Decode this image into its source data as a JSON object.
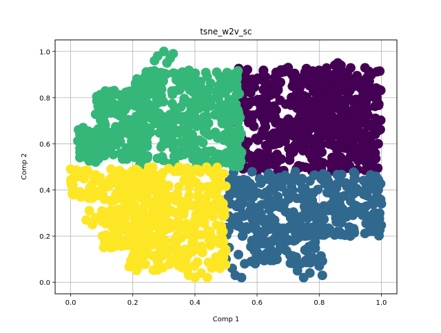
{
  "chart_data": {
    "type": "scatter",
    "title": "tsne_w2v_sc",
    "xlabel": "Comp  1",
    "ylabel": "Comp  2",
    "xlim": [
      -0.05,
      1.05
    ],
    "ylim": [
      -0.05,
      1.05
    ],
    "xticks": [
      0.0,
      0.2,
      0.4,
      0.6,
      0.8,
      1.0
    ],
    "yticks": [
      0.0,
      0.2,
      0.4,
      0.6,
      0.8,
      1.0
    ],
    "xtick_labels": [
      "0.0",
      "0.2",
      "0.4",
      "0.6",
      "0.8",
      "1.0"
    ],
    "ytick_labels": [
      "0.0",
      "0.2",
      "0.4",
      "0.6",
      "0.8",
      "1.0"
    ],
    "grid": true,
    "series": [
      {
        "color": "#440154",
        "regions": [
          {
            "x": [
              0.52,
              1.0
            ],
            "y": [
              0.48,
              0.93
            ]
          },
          {
            "x": [
              0.72,
              0.96
            ],
            "y": [
              0.62,
              0.9
            ]
          }
        ],
        "points": [
          [
            0.86,
            0.95
          ],
          [
            0.87,
            0.94
          ],
          [
            0.85,
            0.94
          ],
          [
            0.7,
            0.93
          ],
          [
            0.68,
            0.91
          ],
          [
            0.98,
            0.64
          ],
          [
            0.99,
            0.6
          ],
          [
            0.98,
            0.56
          ],
          [
            0.54,
            0.9
          ],
          [
            0.53,
            0.88
          ]
        ]
      },
      {
        "color": "#31688e",
        "regions": [
          {
            "x": [
              0.5,
              1.0
            ],
            "y": [
              0.2,
              0.48
            ]
          },
          {
            "x": [
              0.58,
              0.82
            ],
            "y": [
              0.08,
              0.24
            ]
          }
        ],
        "points": [
          [
            0.5,
            0.1
          ],
          [
            0.52,
            0.06
          ],
          [
            0.53,
            0.03
          ],
          [
            0.55,
            0.02
          ],
          [
            0.56,
            0.08
          ],
          [
            0.54,
            0.12
          ],
          [
            0.51,
            0.15
          ],
          [
            0.73,
            0.05
          ],
          [
            0.75,
            0.02
          ],
          [
            0.77,
            0.04
          ],
          [
            0.79,
            0.09
          ],
          [
            0.81,
            0.03
          ],
          [
            0.8,
            0.07
          ],
          [
            0.74,
            0.08
          ],
          [
            0.99,
            0.4
          ],
          [
            1.0,
            0.34
          ],
          [
            0.98,
            0.3
          ],
          [
            0.96,
            0.22
          ],
          [
            0.9,
            0.2
          ],
          [
            0.86,
            0.22
          ]
        ]
      },
      {
        "color": "#35b779",
        "regions": [
          {
            "x": [
              0.2,
              0.55
            ],
            "y": [
              0.5,
              0.92
            ]
          },
          {
            "x": [
              0.08,
              0.25
            ],
            "y": [
              0.53,
              0.83
            ]
          },
          {
            "x": [
              0.02,
              0.12
            ],
            "y": [
              0.52,
              0.67
            ]
          }
        ],
        "points": [
          [
            0.28,
            0.98
          ],
          [
            0.3,
            1.0
          ],
          [
            0.32,
            0.97
          ],
          [
            0.27,
            0.96
          ],
          [
            0.31,
            0.95
          ],
          [
            0.33,
            0.99
          ],
          [
            0.12,
            0.81
          ],
          [
            0.1,
            0.79
          ],
          [
            0.14,
            0.83
          ],
          [
            0.04,
            0.67
          ],
          [
            0.03,
            0.64
          ],
          [
            0.05,
            0.61
          ],
          [
            0.03,
            0.58
          ],
          [
            0.06,
            0.56
          ],
          [
            0.09,
            0.54
          ],
          [
            0.52,
            0.58
          ],
          [
            0.53,
            0.72
          ],
          [
            0.51,
            0.84
          ],
          [
            0.47,
            0.91
          ]
        ]
      },
      {
        "color": "#fde725",
        "regions": [
          {
            "x": [
              0.18,
              0.5
            ],
            "y": [
              0.05,
              0.5
            ]
          },
          {
            "x": [
              0.0,
              0.25
            ],
            "y": [
              0.36,
              0.49
            ]
          },
          {
            "x": [
              0.1,
              0.3
            ],
            "y": [
              0.15,
              0.38
            ]
          }
        ],
        "points": [
          [
            0.0,
            0.49
          ],
          [
            0.01,
            0.45
          ],
          [
            0.02,
            0.48
          ],
          [
            0.06,
            0.31
          ],
          [
            0.08,
            0.28
          ],
          [
            0.05,
            0.27
          ],
          [
            0.1,
            0.29
          ],
          [
            0.07,
            0.25
          ],
          [
            0.11,
            0.17
          ],
          [
            0.13,
            0.15
          ],
          [
            0.16,
            0.16
          ],
          [
            0.22,
            0.13
          ],
          [
            0.24,
            0.12
          ],
          [
            0.2,
            0.11
          ],
          [
            0.38,
            0.03
          ],
          [
            0.4,
            0.02
          ],
          [
            0.42,
            0.04
          ],
          [
            0.44,
            0.02
          ],
          [
            0.36,
            0.08
          ],
          [
            0.48,
            0.06
          ],
          [
            0.49,
            0.12
          ],
          [
            0.49,
            0.22
          ],
          [
            0.49,
            0.32
          ],
          [
            0.48,
            0.42
          ],
          [
            0.13,
            0.49
          ],
          [
            0.08,
            0.44
          ]
        ]
      }
    ]
  }
}
